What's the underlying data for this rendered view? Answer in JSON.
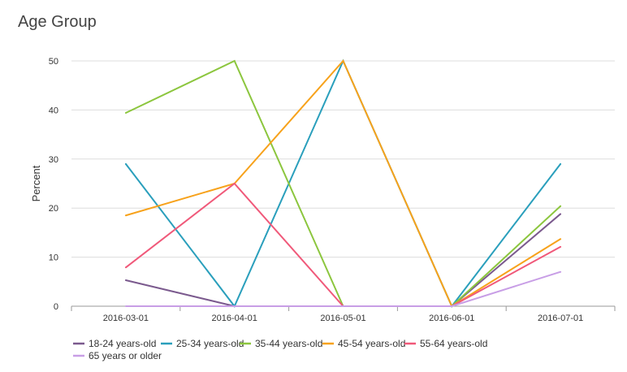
{
  "chart_data": {
    "type": "line",
    "title": "Age Group",
    "xlabel": "",
    "ylabel": "Percent",
    "ylim": [
      0,
      50
    ],
    "yticks": [
      0,
      10,
      20,
      30,
      40,
      50
    ],
    "categories": [
      "2016-03-01",
      "2016-04-01",
      "2016-05-01",
      "2016-06-01",
      "2016-07-01"
    ],
    "grid": true,
    "legend": "bottom",
    "series": [
      {
        "name": "18-24 years-old",
        "color": "#7b5a8e",
        "values": [
          5.3,
          0,
          0,
          0,
          18.8
        ]
      },
      {
        "name": "25-34 years-old",
        "color": "#2a9fbc",
        "values": [
          29,
          0,
          50,
          0,
          29
        ]
      },
      {
        "name": "35-44 years-old",
        "color": "#8cc63e",
        "values": [
          39.4,
          50,
          0,
          0,
          20.4
        ]
      },
      {
        "name": "45-54 years-old",
        "color": "#f7a21b",
        "values": [
          18.5,
          25,
          50,
          0,
          13.7
        ]
      },
      {
        "name": "55-64 years-old",
        "color": "#f0597a",
        "values": [
          7.9,
          25,
          0,
          0,
          12.1
        ]
      },
      {
        "name": "65 years or older",
        "color": "#c89ee6",
        "values": [
          0,
          0,
          0,
          0,
          7
        ]
      }
    ]
  }
}
